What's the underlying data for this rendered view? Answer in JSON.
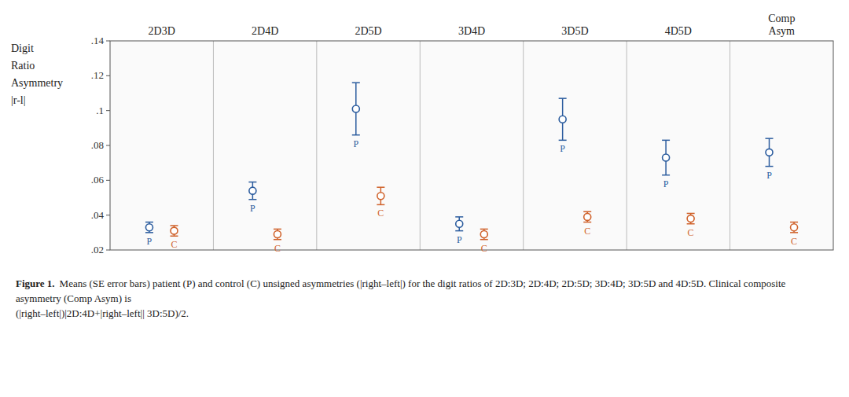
{
  "chart_data": {
    "type": "errorbar",
    "categories": [
      "2D3D",
      "2D4D",
      "2D5D",
      "3D4D",
      "3D5D",
      "4D5D",
      "Comp\nAsym"
    ],
    "series": [
      {
        "name": "P",
        "marker": "circle",
        "values": [
          0.033,
          0.054,
          0.101,
          0.035,
          0.095,
          0.073,
          0.076
        ],
        "errors": [
          0.003,
          0.005,
          0.015,
          0.004,
          0.012,
          0.01,
          0.008
        ]
      },
      {
        "name": "C",
        "marker": "circle",
        "values": [
          0.031,
          0.029,
          0.051,
          0.029,
          0.039,
          0.038,
          0.033
        ],
        "errors": [
          0.003,
          0.003,
          0.005,
          0.003,
          0.003,
          0.003,
          0.003
        ]
      }
    ],
    "ylim": [
      0.02,
      0.14
    ],
    "yticks": [
      {
        "value": 0.02,
        "label": ".02"
      },
      {
        "value": 0.04,
        "label": ".04"
      },
      {
        "value": 0.06,
        "label": ".06"
      },
      {
        "value": 0.08,
        "label": ".08"
      },
      {
        "value": 0.1,
        "label": ".1"
      },
      {
        "value": 0.12,
        "label": ".12"
      },
      {
        "value": 0.14,
        "label": ".14"
      }
    ],
    "ylabel": [
      "Digit",
      "Ratio",
      "Asymmetry",
      "|r-l|"
    ],
    "caption_title": "Figure 1.",
    "caption": "Means (SE error bars) patient (P) and control (C) unsigned asymmetries (|right–left|) for the digit ratios of 2D:3D; 2D:4D; 2D:5D; 3D:4D; 3D:5D and 4D:5D. Clinical composite asymmetry (Comp Asym) is\n(|right–left|)|2D:4D+|right–left|| 3D:5D)/2.",
    "grid": false
  }
}
